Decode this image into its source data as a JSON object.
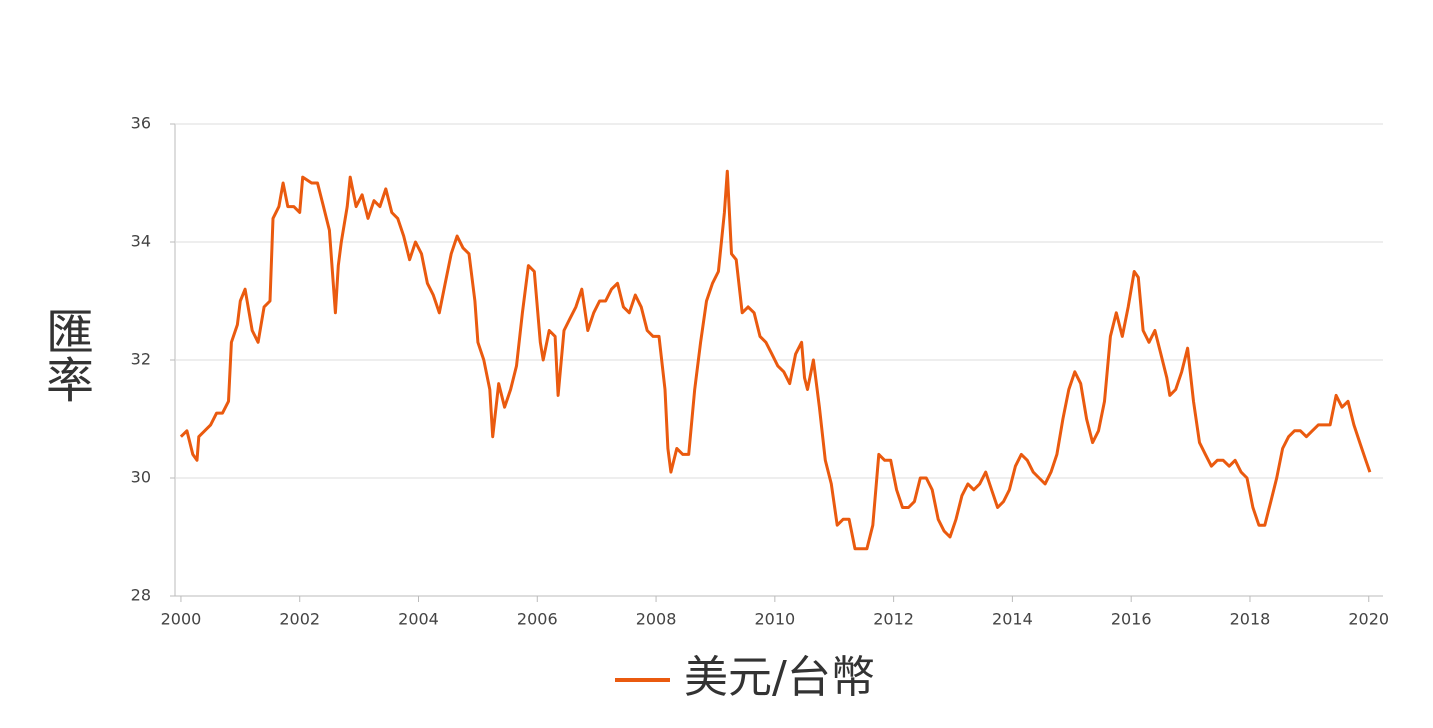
{
  "chart_data": {
    "type": "line",
    "y_label": "匯率",
    "x": [
      2000.0,
      2000.1,
      2000.2,
      2000.27,
      2000.3,
      2000.4,
      2000.5,
      2000.6,
      2000.7,
      2000.8,
      2000.85,
      2000.95,
      2001.0,
      2001.08,
      2001.2,
      2001.3,
      2001.4,
      2001.5,
      2001.55,
      2001.65,
      2001.72,
      2001.8,
      2001.9,
      2002.0,
      2002.05,
      2002.2,
      2002.3,
      2002.4,
      2002.5,
      2002.55,
      2002.6,
      2002.65,
      2002.7,
      2002.8,
      2002.85,
      2002.95,
      2003.05,
      2003.15,
      2003.25,
      2003.35,
      2003.45,
      2003.55,
      2003.65,
      2003.75,
      2003.85,
      2003.95,
      2004.05,
      2004.15,
      2004.25,
      2004.35,
      2004.45,
      2004.55,
      2004.65,
      2004.75,
      2004.85,
      2004.95,
      2005.0,
      2005.1,
      2005.2,
      2005.25,
      2005.35,
      2005.45,
      2005.55,
      2005.65,
      2005.75,
      2005.85,
      2005.95,
      2006.05,
      2006.1,
      2006.2,
      2006.3,
      2006.35,
      2006.45,
      2006.55,
      2006.65,
      2006.75,
      2006.85,
      2006.95,
      2007.05,
      2007.15,
      2007.25,
      2007.35,
      2007.45,
      2007.55,
      2007.65,
      2007.75,
      2007.85,
      2007.95,
      2008.05,
      2008.15,
      2008.2,
      2008.25,
      2008.35,
      2008.45,
      2008.55,
      2008.65,
      2008.75,
      2008.85,
      2008.95,
      2009.05,
      2009.15,
      2009.2,
      2009.27,
      2009.35,
      2009.45,
      2009.55,
      2009.65,
      2009.75,
      2009.85,
      2009.95,
      2010.05,
      2010.15,
      2010.25,
      2010.35,
      2010.45,
      2010.5,
      2010.55,
      2010.65,
      2010.75,
      2010.85,
      2010.95,
      2011.05,
      2011.15,
      2011.25,
      2011.35,
      2011.45,
      2011.55,
      2011.65,
      2011.75,
      2011.85,
      2011.95,
      2012.05,
      2012.15,
      2012.25,
      2012.35,
      2012.45,
      2012.55,
      2012.65,
      2012.75,
      2012.85,
      2012.95,
      2013.05,
      2013.15,
      2013.25,
      2013.35,
      2013.45,
      2013.55,
      2013.65,
      2013.75,
      2013.85,
      2013.95,
      2014.05,
      2014.15,
      2014.25,
      2014.35,
      2014.45,
      2014.55,
      2014.65,
      2014.75,
      2014.85,
      2014.95,
      2015.05,
      2015.15,
      2015.25,
      2015.35,
      2015.45,
      2015.55,
      2015.65,
      2015.75,
      2015.85,
      2015.95,
      2016.05,
      2016.12,
      2016.2,
      2016.3,
      2016.4,
      2016.5,
      2016.6,
      2016.65,
      2016.75,
      2016.85,
      2016.95,
      2017.05,
      2017.15,
      2017.25,
      2017.35,
      2017.45,
      2017.55,
      2017.65,
      2017.75,
      2017.85,
      2017.95,
      2018.05,
      2018.15,
      2018.25,
      2018.35,
      2018.45,
      2018.55,
      2018.65,
      2018.75,
      2018.85,
      2018.95,
      2019.05,
      2019.15,
      2019.25,
      2019.35,
      2019.45,
      2019.55,
      2019.65,
      2019.75,
      2019.85,
      2019.95,
      2020.02
    ],
    "series": [
      {
        "name": "美元/台幣",
        "color": "#ea5a0f",
        "values": [
          30.7,
          30.8,
          30.4,
          30.3,
          30.7,
          30.8,
          30.9,
          31.1,
          31.1,
          31.3,
          32.3,
          32.6,
          33.0,
          33.2,
          32.5,
          32.3,
          32.9,
          33.0,
          34.4,
          34.6,
          35.0,
          34.6,
          34.6,
          34.5,
          35.1,
          35.0,
          35.0,
          34.6,
          34.2,
          33.5,
          32.8,
          33.6,
          34.0,
          34.6,
          35.1,
          34.6,
          34.8,
          34.4,
          34.7,
          34.6,
          34.9,
          34.5,
          34.4,
          34.1,
          33.7,
          34.0,
          33.8,
          33.3,
          33.1,
          32.8,
          33.3,
          33.8,
          34.1,
          33.9,
          33.8,
          33.0,
          32.3,
          32.0,
          31.5,
          30.7,
          31.6,
          31.2,
          31.5,
          31.9,
          32.8,
          33.6,
          33.5,
          32.3,
          32.0,
          32.5,
          32.4,
          31.4,
          32.5,
          32.7,
          32.9,
          33.2,
          32.5,
          32.8,
          33.0,
          33.0,
          33.2,
          33.3,
          32.9,
          32.8,
          33.1,
          32.9,
          32.5,
          32.4,
          32.4,
          31.5,
          30.5,
          30.1,
          30.5,
          30.4,
          30.4,
          31.5,
          32.3,
          33.0,
          33.3,
          33.5,
          34.5,
          35.2,
          33.8,
          33.7,
          32.8,
          32.9,
          32.8,
          32.4,
          32.3,
          32.1,
          31.9,
          31.8,
          31.6,
          32.1,
          32.3,
          31.7,
          31.5,
          32.0,
          31.2,
          30.3,
          29.9,
          29.2,
          29.3,
          29.3,
          28.8,
          28.8,
          28.8,
          29.2,
          30.4,
          30.3,
          30.3,
          29.8,
          29.5,
          29.5,
          29.6,
          30.0,
          30.0,
          29.8,
          29.3,
          29.1,
          29.0,
          29.3,
          29.7,
          29.9,
          29.8,
          29.9,
          30.1,
          29.8,
          29.5,
          29.6,
          29.8,
          30.2,
          30.4,
          30.3,
          30.1,
          30.0,
          29.9,
          30.1,
          30.4,
          31.0,
          31.5,
          31.8,
          31.6,
          31.0,
          30.6,
          30.8,
          31.3,
          32.4,
          32.8,
          32.4,
          32.9,
          33.5,
          33.4,
          32.5,
          32.3,
          32.5,
          32.1,
          31.7,
          31.4,
          31.5,
          31.8,
          32.2,
          31.3,
          30.6,
          30.4,
          30.2,
          30.3,
          30.3,
          30.2,
          30.3,
          30.1,
          30.0,
          29.5,
          29.2,
          29.2,
          29.6,
          30.0,
          30.5,
          30.7,
          30.8,
          30.8,
          30.7,
          30.8,
          30.9,
          30.9,
          30.9,
          31.4,
          31.2,
          31.3,
          30.9,
          30.6,
          30.3,
          30.1
        ]
      }
    ],
    "xlim": [
      1999.9,
      2020.24
    ],
    "xticks": [
      2000,
      2002,
      2004,
      2006,
      2008,
      2010,
      2012,
      2014,
      2016,
      2018,
      2020
    ],
    "ylim": [
      28,
      36
    ],
    "yticks": [
      28,
      30,
      32,
      34,
      36
    ],
    "grid": true
  }
}
